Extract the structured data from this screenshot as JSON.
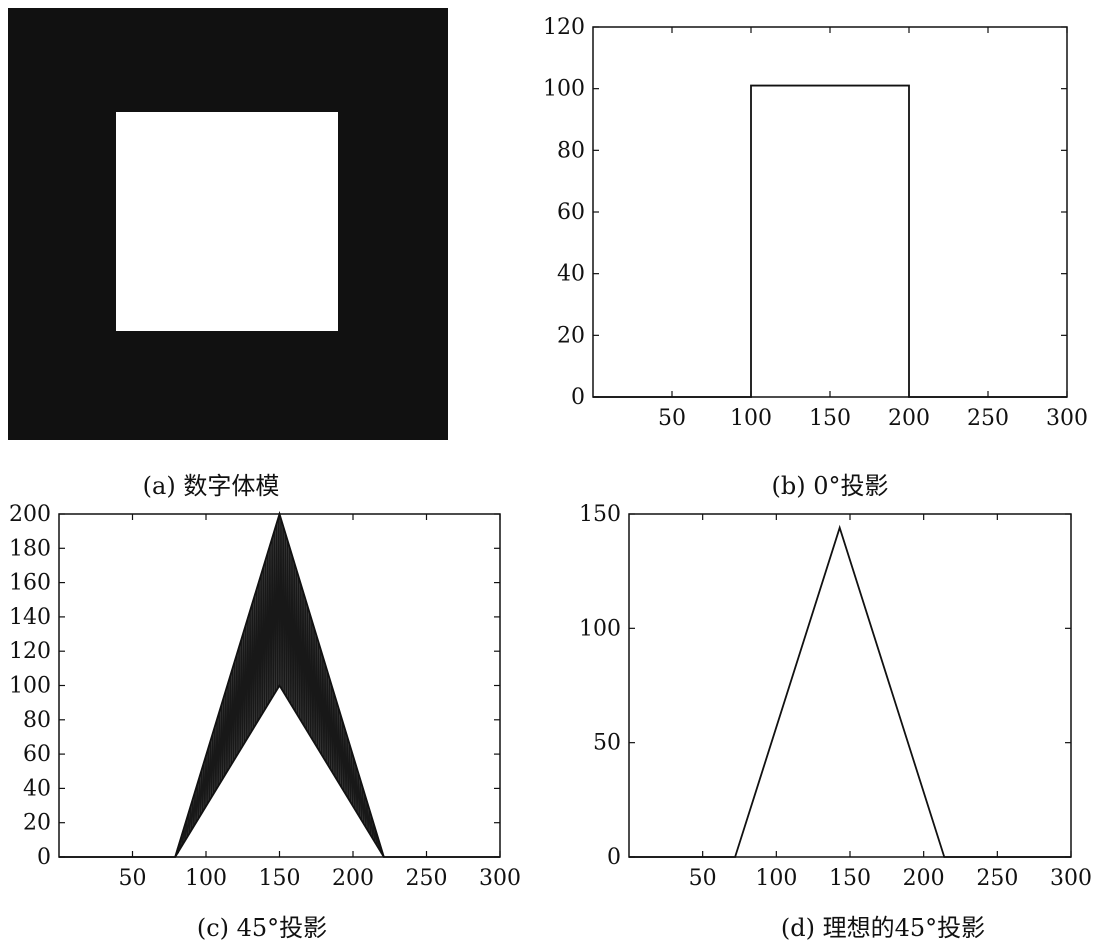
{
  "captions": {
    "a": "(a) 数字体模",
    "b": "(b) 0°投影",
    "c": "(c) 45°投影",
    "d": "(d) 理想的45°投影"
  },
  "phantom": {
    "background_color": "#111111",
    "square_color": "#ffffff"
  },
  "chart_data": [
    {
      "id": "b",
      "type": "line",
      "title": "",
      "xlabel": "",
      "ylabel": "",
      "xlim": [
        0,
        300
      ],
      "ylim": [
        0,
        120
      ],
      "xticks": [
        50,
        100,
        150,
        200,
        250,
        300
      ],
      "yticks": [
        0,
        20,
        40,
        60,
        80,
        100,
        120
      ],
      "series": [
        {
          "x": [
            0,
            100,
            100,
            200,
            200,
            300
          ],
          "y": [
            0,
            0,
            101,
            101,
            0,
            0
          ]
        }
      ]
    },
    {
      "id": "c",
      "type": "line",
      "title": "",
      "xlabel": "",
      "ylabel": "",
      "xlim": [
        0,
        300
      ],
      "ylim": [
        0,
        200
      ],
      "xticks": [
        50,
        100,
        150,
        200,
        250,
        300
      ],
      "yticks": [
        0,
        20,
        40,
        60,
        80,
        100,
        120,
        140,
        160,
        180,
        200
      ],
      "series": [
        {
          "x": [
            0,
            79,
            150,
            221,
            300
          ],
          "y": [
            0,
            0,
            200,
            0,
            0
          ]
        },
        {
          "x": [
            79,
            150,
            221
          ],
          "y": [
            0,
            100,
            0
          ]
        }
      ],
      "oscillating_fill_between_envelopes": true
    },
    {
      "id": "d",
      "type": "line",
      "title": "",
      "xlabel": "",
      "ylabel": "",
      "xlim": [
        0,
        300
      ],
      "ylim": [
        0,
        150
      ],
      "xticks": [
        50,
        100,
        150,
        200,
        250,
        300
      ],
      "yticks": [
        0,
        50,
        100,
        150
      ],
      "series": [
        {
          "x": [
            0,
            72,
            143,
            214,
            300
          ],
          "y": [
            0,
            0,
            144,
            0,
            0
          ]
        }
      ]
    }
  ]
}
